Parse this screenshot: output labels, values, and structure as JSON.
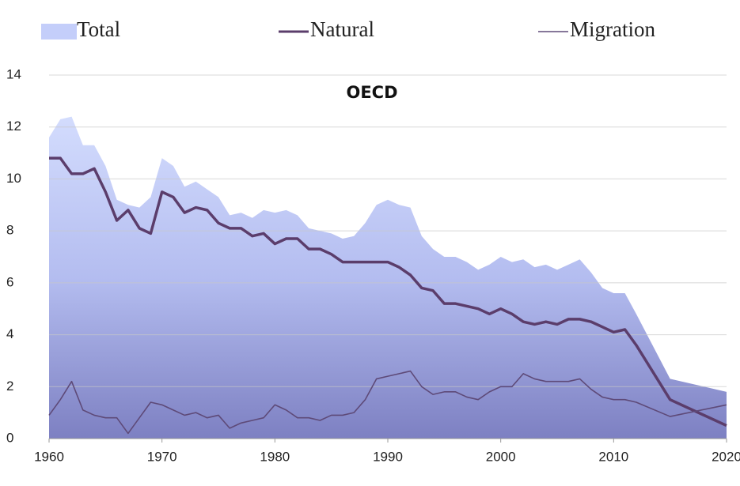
{
  "chart_data": {
    "type": "area-line",
    "title": "OECD",
    "x": [
      1960,
      1961,
      1962,
      1963,
      1964,
      1965,
      1966,
      1967,
      1968,
      1969,
      1970,
      1971,
      1972,
      1973,
      1974,
      1975,
      1976,
      1977,
      1978,
      1979,
      1980,
      1981,
      1982,
      1983,
      1984,
      1985,
      1986,
      1987,
      1988,
      1989,
      1990,
      1991,
      1992,
      1993,
      1994,
      1995,
      1996,
      1997,
      1998,
      1999,
      2000,
      2001,
      2002,
      2003,
      2004,
      2005,
      2006,
      2007,
      2008,
      2009,
      2010,
      2011,
      2012,
      2015,
      2020
    ],
    "series": [
      {
        "name": "Total",
        "color": "#b9c6f6",
        "values": [
          11.6,
          12.3,
          12.4,
          11.3,
          11.3,
          10.5,
          9.2,
          9.0,
          8.9,
          9.3,
          10.8,
          10.5,
          9.7,
          9.9,
          9.6,
          9.3,
          8.6,
          8.7,
          8.5,
          8.8,
          8.7,
          8.8,
          8.6,
          8.1,
          8.0,
          7.9,
          7.7,
          7.8,
          8.3,
          9.0,
          9.2,
          9.0,
          8.9,
          7.8,
          7.3,
          7.0,
          7.0,
          6.8,
          6.5,
          6.7,
          7.0,
          6.8,
          6.9,
          6.6,
          6.7,
          6.5,
          6.7,
          6.9,
          6.4,
          5.8,
          5.6,
          5.6,
          4.8,
          2.3,
          1.8
        ]
      },
      {
        "name": "Natural",
        "color": "#5b3d6b",
        "values": [
          10.8,
          10.8,
          10.2,
          10.2,
          10.4,
          9.5,
          8.4,
          8.8,
          8.1,
          7.9,
          9.5,
          9.3,
          8.7,
          8.9,
          8.8,
          8.3,
          8.1,
          8.1,
          7.8,
          7.9,
          7.5,
          7.7,
          7.7,
          7.3,
          7.3,
          7.1,
          6.8,
          6.8,
          6.8,
          6.8,
          6.8,
          6.6,
          6.3,
          5.8,
          5.7,
          5.2,
          5.2,
          5.1,
          5.0,
          4.8,
          5.0,
          4.8,
          4.5,
          4.4,
          4.5,
          4.4,
          4.6,
          4.6,
          4.5,
          4.3,
          4.1,
          4.2,
          3.6,
          1.5,
          0.5
        ]
      },
      {
        "name": "Migration",
        "color": "#5e4a78",
        "values": [
          0.9,
          1.5,
          2.2,
          1.1,
          0.9,
          0.8,
          0.8,
          0.2,
          0.8,
          1.4,
          1.3,
          1.1,
          0.9,
          1.0,
          0.8,
          0.9,
          0.4,
          0.6,
          0.7,
          0.8,
          1.3,
          1.1,
          0.8,
          0.8,
          0.7,
          0.9,
          0.9,
          1.0,
          1.5,
          2.3,
          2.4,
          2.5,
          2.6,
          2.0,
          1.7,
          1.8,
          1.8,
          1.6,
          1.5,
          1.8,
          2.0,
          2.0,
          2.5,
          2.3,
          2.2,
          2.2,
          2.2,
          2.3,
          1.9,
          1.6,
          1.5,
          1.5,
          1.4,
          0.85,
          1.3
        ]
      }
    ],
    "xlim": [
      1960,
      2020
    ],
    "xticks": [
      1960,
      1970,
      1980,
      1990,
      2000,
      2010,
      2020
    ],
    "ylim": [
      0,
      14
    ],
    "yticks": [
      0,
      2,
      4,
      6,
      8,
      10,
      12,
      14
    ],
    "grid": true,
    "legend": "top"
  }
}
